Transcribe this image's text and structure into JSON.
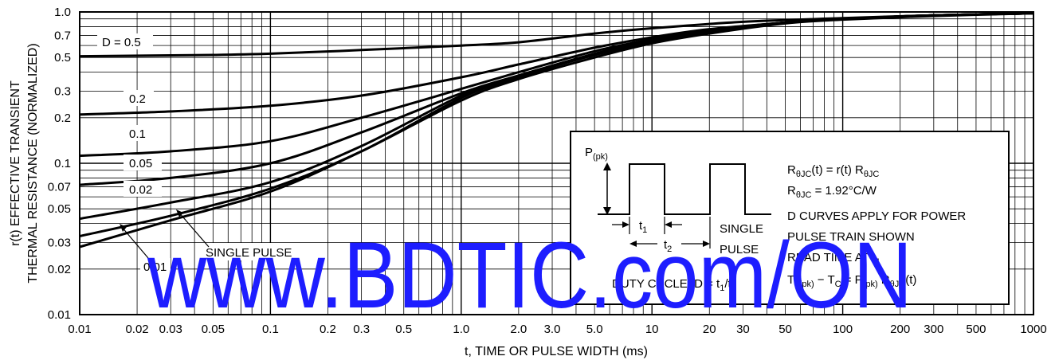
{
  "chart_data": {
    "type": "line",
    "xscale": "log",
    "yscale": "log",
    "xlim": [
      0.01,
      1000
    ],
    "ylim": [
      0.01,
      1.0
    ],
    "grid": true,
    "xlabel": "t, TIME OR PULSE WIDTH (ms)",
    "ylabel_line1": "r(t) EFFECTIVE TRANSIENT",
    "ylabel_line2": "THERMAL RESISTANCE (NORMALIZED)",
    "x_ticks": [
      {
        "v": 0.01,
        "label": "0.01"
      },
      {
        "v": 0.02,
        "label": "0.02"
      },
      {
        "v": 0.03,
        "label": "0.03"
      },
      {
        "v": 0.05,
        "label": "0.05"
      },
      {
        "v": 0.1,
        "label": "0.1"
      },
      {
        "v": 0.2,
        "label": "0.2"
      },
      {
        "v": 0.3,
        "label": "0.3"
      },
      {
        "v": 0.5,
        "label": "0.5"
      },
      {
        "v": 1,
        "label": "1.0"
      },
      {
        "v": 2,
        "label": "2.0"
      },
      {
        "v": 3,
        "label": "3.0"
      },
      {
        "v": 5,
        "label": "5.0"
      },
      {
        "v": 10,
        "label": "10"
      },
      {
        "v": 20,
        "label": "20"
      },
      {
        "v": 30,
        "label": "30"
      },
      {
        "v": 50,
        "label": "50"
      },
      {
        "v": 100,
        "label": "100"
      },
      {
        "v": 200,
        "label": "200"
      },
      {
        "v": 300,
        "label": "300"
      },
      {
        "v": 500,
        "label": "500"
      },
      {
        "v": 1000,
        "label": "1000"
      }
    ],
    "y_ticks": [
      {
        "v": 0.01,
        "label": "0.01"
      },
      {
        "v": 0.02,
        "label": "0.02"
      },
      {
        "v": 0.03,
        "label": "0.03"
      },
      {
        "v": 0.05,
        "label": "0.05"
      },
      {
        "v": 0.07,
        "label": "0.07"
      },
      {
        "v": 0.1,
        "label": "0.1"
      },
      {
        "v": 0.2,
        "label": "0.2"
      },
      {
        "v": 0.3,
        "label": "0.3"
      },
      {
        "v": 0.5,
        "label": "0.5"
      },
      {
        "v": 0.7,
        "label": "0.7"
      },
      {
        "v": 1.0,
        "label": "1.0"
      }
    ],
    "series": [
      {
        "name": "D = 0.5",
        "x": [
          0.01,
          0.05,
          0.1,
          0.3,
          1,
          2,
          5,
          10,
          30,
          100,
          300,
          1000
        ],
        "y": [
          0.51,
          0.52,
          0.53,
          0.56,
          0.6,
          0.63,
          0.72,
          0.78,
          0.86,
          0.91,
          0.95,
          0.98
        ]
      },
      {
        "name": "0.2",
        "x": [
          0.01,
          0.03,
          0.1,
          0.3,
          1,
          2,
          5,
          10,
          20,
          50,
          100,
          300,
          1000
        ],
        "y": [
          0.21,
          0.22,
          0.24,
          0.28,
          0.37,
          0.45,
          0.58,
          0.68,
          0.77,
          0.85,
          0.9,
          0.95,
          0.98
        ]
      },
      {
        "name": "0.1",
        "x": [
          0.01,
          0.03,
          0.1,
          0.3,
          1,
          2,
          5,
          10,
          20,
          50,
          100,
          300,
          1000
        ],
        "y": [
          0.112,
          0.12,
          0.14,
          0.2,
          0.31,
          0.4,
          0.55,
          0.66,
          0.76,
          0.85,
          0.9,
          0.95,
          0.98
        ]
      },
      {
        "name": "0.05",
        "x": [
          0.01,
          0.03,
          0.1,
          0.3,
          1,
          2,
          5,
          10,
          20,
          50,
          100,
          300,
          1000
        ],
        "y": [
          0.072,
          0.08,
          0.1,
          0.16,
          0.29,
          0.38,
          0.53,
          0.65,
          0.75,
          0.85,
          0.9,
          0.95,
          0.98
        ]
      },
      {
        "name": "0.02",
        "x": [
          0.01,
          0.03,
          0.1,
          0.3,
          1,
          2,
          5,
          10,
          20,
          50,
          100,
          300,
          1000
        ],
        "y": [
          0.043,
          0.055,
          0.075,
          0.13,
          0.28,
          0.38,
          0.52,
          0.64,
          0.74,
          0.85,
          0.9,
          0.95,
          0.98
        ]
      },
      {
        "name": "0.01",
        "x": [
          0.01,
          0.03,
          0.1,
          0.3,
          1,
          2,
          5,
          10,
          20,
          50,
          100,
          300,
          1000
        ],
        "y": [
          0.033,
          0.045,
          0.068,
          0.12,
          0.27,
          0.37,
          0.52,
          0.63,
          0.74,
          0.85,
          0.9,
          0.95,
          0.98
        ]
      },
      {
        "name": "SINGLE PULSE",
        "x": [
          0.01,
          0.03,
          0.1,
          0.3,
          1,
          2,
          5,
          10,
          20,
          50,
          100,
          300,
          1000
        ],
        "y": [
          0.028,
          0.042,
          0.065,
          0.12,
          0.26,
          0.36,
          0.5,
          0.62,
          0.72,
          0.84,
          0.89,
          0.94,
          0.98
        ]
      }
    ],
    "annotations": {
      "d05": "D = 0.5",
      "d02": "0.2",
      "d01": "0.1",
      "d005": "0.05",
      "d002": "0.02",
      "d001": "0.01",
      "single_pulse": "SINGLE PULSE"
    }
  },
  "inset": {
    "ppk_main": "P",
    "ppk_sub": "(pk)",
    "t1_main": "t",
    "t1_sub": "1",
    "t2_main": "t",
    "t2_sub": "2",
    "single_line1": "SINGLE",
    "single_line2": "PULSE",
    "duty_cycle_prefix": "DUTY CYCLE, D = t",
    "duty_cycle_sub1": "1",
    "duty_cycle_mid": "/t",
    "duty_cycle_sub2": "2",
    "eq1_a": "R",
    "eq1_a_sub": "θJC",
    "eq1_b": "(t) = r(t) R",
    "eq1_b_sub": "θJC",
    "eq2_a": "R",
    "eq2_a_sub": "θJC",
    "eq2_b": " = 1.92°C/W",
    "line3": "D CURVES APPLY FOR POWER",
    "line4": "PULSE TRAIN SHOWN",
    "line5_a": "READ TIME AT t",
    "line5_sub": "1",
    "line6_a": "T",
    "line6_sub1": "J(pk)",
    "line6_b": " − T",
    "line6_sub2": "C",
    "line6_c": " = P",
    "line6_sub3": "(pk)",
    "line6_d": " R",
    "line6_sub4": "θJC",
    "line6_e": "(t)"
  },
  "watermark": "www.BDTIC.com/ON"
}
